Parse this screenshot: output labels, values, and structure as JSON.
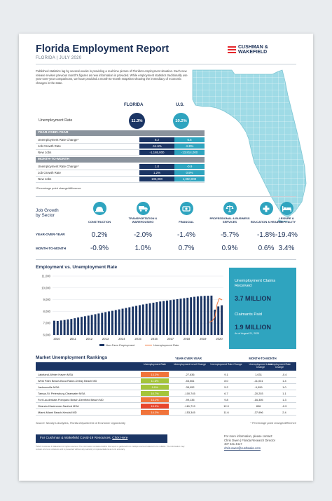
{
  "header": {
    "title": "Florida Employment Report",
    "subtitle": "FLORIDA | JULY 2020",
    "logo_line1": "CUSHMAN &",
    "logo_line2": "WAKEFIELD"
  },
  "intro": "Published statistics lag by several weeks in providing a real time picture of Florida's employment situation. Each new release revises previous month's figures as new information is provided. While employment statistics traditionally use year-over-year comparisons, we have provided a month-to-month snapshot showing the immediacy of economic changes in the state.",
  "kpi": {
    "col_florida": "FLORIDA",
    "col_us": "U.S.",
    "unemployment_label": "Unemployment Rate",
    "florida_rate": "11.3%",
    "us_rate": "10.2%"
  },
  "yoy": {
    "header": "YEAR-OVER-YEAR",
    "rows": [
      {
        "label": "Unemployment Rate Change*",
        "fl": "8.2",
        "us": "6.5"
      },
      {
        "label": "Job Growth Rate",
        "fl": "-11.6%",
        "us": "-8.8%"
      },
      {
        "label": "New Jobs",
        "fl": "-1,165,000",
        "us": "-13,814,000"
      }
    ]
  },
  "mtm": {
    "header": "MONTH-TO-MONTH",
    "rows": [
      {
        "label": "Unemployment Rate Change*",
        "fl": "1.0",
        "us": "-0.9"
      },
      {
        "label": "Job Growth Rate",
        "fl": "1.2%",
        "us": "0.9%"
      },
      {
        "label": "New Jobs",
        "fl": "105,000",
        "us": "1,350,000"
      }
    ]
  },
  "footnote": "*Percentage point change/difference",
  "job_growth": {
    "title_line1": "Job Growth",
    "title_line2": "by Sector",
    "yoy_label": "YEAR-OVER-YEAR",
    "mtm_label": "MONTH-TO-MONTH",
    "sectors": [
      {
        "name": "CONSTRUCTION",
        "icon": "hard-hat-icon",
        "yoy": "0.2%",
        "mtm": "-0.9%"
      },
      {
        "name": "TRANSPORTATION & WAREHOUSING",
        "icon": "truck-icon",
        "yoy": "-2.0%",
        "mtm": "1.0%"
      },
      {
        "name": "FINANCIAL",
        "icon": "money-icon",
        "yoy": "-1.4%",
        "mtm": "0.7%"
      },
      {
        "name": "PROFESSIONAL & BUSINESS SERVICES",
        "icon": "scales-icon",
        "yoy": "-5.7%",
        "mtm": "0.9%"
      },
      {
        "name": "EDUCATION & HEALTH",
        "icon": "medical-cross-icon",
        "yoy": "-1.8%",
        "mtm": "0.6%"
      },
      {
        "name": "LEISURE & HOSPITALITY",
        "icon": "bed-icon",
        "yoy": "-19.4%",
        "mtm": "3.4%"
      }
    ]
  },
  "chart_data": {
    "type": "bar",
    "title": "Employment vs. Unemployment Rate",
    "x_ticks": [
      "2010",
      "2011",
      "2012",
      "2013",
      "2014",
      "2015",
      "2016",
      "2017",
      "2018",
      "2019",
      "2020"
    ],
    "y_ticks": [
      "6,000",
      "7,000",
      "8,000",
      "9,000",
      "10,000",
      "11,000"
    ],
    "ylim": [
      6000,
      11000
    ],
    "series": [
      {
        "name": "Non-Farm Employment",
        "kind": "bar",
        "color": "#1b3564",
        "values": [
          7210,
          7190,
          7230,
          7270,
          7320,
          7360,
          7420,
          7480,
          7540,
          7590,
          7640,
          7700,
          7760,
          7820,
          7880,
          7940,
          8000,
          8050,
          8110,
          8170,
          8230,
          8290,
          8350,
          8410,
          8470,
          8530,
          8590,
          8640,
          8690,
          8740,
          8790,
          8840,
          8880,
          8920,
          8960,
          9000,
          9040,
          9080,
          9120,
          9160,
          9200,
          9240,
          9270,
          9300,
          9320,
          9330,
          9340,
          8150,
          8420,
          8520
        ]
      },
      {
        "name": "Unemployment Rate",
        "kind": "line",
        "color": "#f0743b"
      }
    ]
  },
  "claims": {
    "received_label": "Unemployment Claims Received",
    "received_value": "3.7 MILLION",
    "paid_label": "Claimants Paid",
    "paid_value": "1.9 MILLION",
    "paid_note": "As of August 21, 2020"
  },
  "rankings": {
    "title": "Market Unemployment Rankings",
    "yoy_header": "YEAR-OVER-YEAR",
    "mtm_header": "MONTH-TO-MONTH",
    "col_rate": "Unemployment Rate",
    "col_level": "Unemployment Level Change",
    "col_rate_change": "Unemployment Rate Change",
    "rows": [
      {
        "market": "Lakeland-Winter Haven MSA",
        "rate": "13.2%",
        "color": "#f0743b",
        "yoy_level": "-27,636",
        "yoy_rate": "9.1",
        "mtm_level": "1,031",
        "mtm_rate": "-0.4"
      },
      {
        "market": "West Palm Beach-Boca Raton-Delray Beach MD",
        "rate": "11.6%",
        "color": "#a4c43a",
        "yoy_level": "-53,561",
        "yoy_rate": "8.0",
        "mtm_level": "-11,031",
        "mtm_rate": "1.4"
      },
      {
        "market": "Jacksonville MSA",
        "rate": "9.9%",
        "color": "#a4c43a",
        "yoy_level": "-35,952",
        "yoy_rate": "5.2",
        "mtm_level": "-9,099",
        "mtm_rate": "1.0"
      },
      {
        "market": "Tampa-St. Petersburg-Clearwater MSA",
        "rate": "10.7%",
        "color": "#a4c43a",
        "yoy_level": "-100,745",
        "yoy_rate": "6.7",
        "mtm_level": "-20,203",
        "mtm_rate": "1.1"
      },
      {
        "market": "Fort Lauderdale-Pompano Beach-Deerfield Beach MD",
        "rate": "13.1%",
        "color": "#f0743b",
        "yoy_level": "-99,135",
        "yoy_rate": "9.8",
        "mtm_level": "-16,305",
        "mtm_rate": "1.3"
      },
      {
        "market": "Orlando-Kissimmee-Sanford MSA",
        "rate": "15.3%",
        "color": "#e8452c",
        "yoy_level": "-161,719",
        "yoy_rate": "12.0",
        "mtm_level": "896",
        "mtm_rate": "-0.9"
      },
      {
        "market": "Miami-Miami Beach-Kendall MD",
        "rate": "14.2%",
        "color": "#f0743b",
        "yoy_level": "-153,345",
        "yoy_rate": "11.6",
        "mtm_level": "-37,996",
        "mtm_rate": "2.4"
      }
    ]
  },
  "source": "Source: Moody's Analytics, Florida Department of Economic Opportunity",
  "source_note": "* Percentage point change/difference",
  "cta": {
    "text": "For Cushman & Wakefield Covid-19 Resources,",
    "link": "Click Here"
  },
  "fine_print": "©2020 Cushman & Wakefield. All rights reserved. The information contained within this report is gathered from multiple sources believed to be reliable. The information may contain errors or omissions and is presented without any warranty or representations as to its accuracy.",
  "contact": {
    "line1": "For more information, please contact:",
    "line2": "Chris Owen | Florida Research Director",
    "line3": "407 541 4417",
    "email": "chris.owen@cushwake.com"
  }
}
